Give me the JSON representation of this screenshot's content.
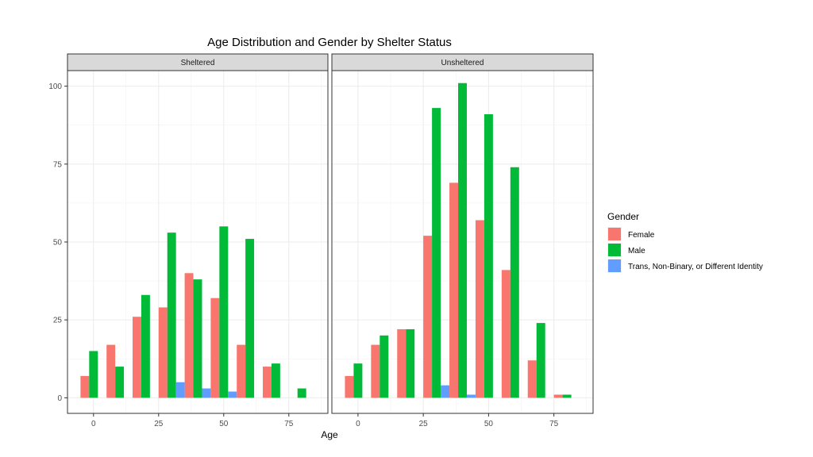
{
  "chart_data": {
    "type": "bar",
    "title": "Age Distribution and Gender by Shelter Status",
    "xlabel": "Age",
    "ylabel": "",
    "xlim": [
      -10,
      90
    ],
    "ylim": [
      -5,
      105
    ],
    "x_ticks": [
      0,
      25,
      50,
      75
    ],
    "y_ticks": [
      0,
      25,
      50,
      75,
      100
    ],
    "grid": true,
    "legend_position": "right",
    "legend": {
      "title": "Gender",
      "entries": [
        {
          "name": "Female",
          "color": "#F8766D"
        },
        {
          "name": "Male",
          "color": "#00BA38"
        },
        {
          "name": "Trans, Non-Binary, or Different Identity",
          "color": "#619CFF"
        }
      ]
    },
    "bin_centers": [
      0,
      10,
      20,
      30,
      40,
      50,
      60,
      70,
      80
    ],
    "bin_width": 10,
    "panels": [
      {
        "name": "Sheltered",
        "series": [
          {
            "name": "Female",
            "values": [
              7,
              17,
              26,
              29,
              40,
              32,
              17,
              10,
              0
            ]
          },
          {
            "name": "Male",
            "values": [
              15,
              10,
              33,
              53,
              38,
              55,
              51,
              11,
              3
            ]
          },
          {
            "name": "Trans, Non-Binary, or Different Identity",
            "values": [
              0,
              0,
              0,
              5,
              3,
              2,
              0,
              0,
              0
            ]
          }
        ]
      },
      {
        "name": "Unsheltered",
        "series": [
          {
            "name": "Female",
            "values": [
              7,
              17,
              22,
              52,
              69,
              57,
              41,
              12,
              1
            ]
          },
          {
            "name": "Male",
            "values": [
              11,
              20,
              22,
              93,
              101,
              91,
              74,
              24,
              1
            ]
          },
          {
            "name": "Trans, Non-Binary, or Different Identity",
            "values": [
              0,
              0,
              0,
              4,
              1,
              0,
              0,
              0,
              0
            ]
          }
        ]
      }
    ]
  }
}
